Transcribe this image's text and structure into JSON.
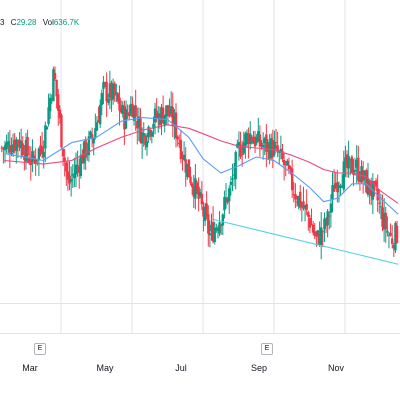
{
  "legend": {
    "prefix": "3",
    "close_label": "C",
    "close_value": "29.28",
    "volume_label": "Vol",
    "volume_value": "636.7K"
  },
  "events": [
    {
      "label": "E",
      "date": "Feb"
    },
    {
      "label": "E",
      "date": "Aug"
    }
  ],
  "colors": {
    "up": "#089981",
    "down": "#f23645",
    "ma_fast": "#5b9cf6",
    "ma_slow": "#e84a7f",
    "trendline": "#4dd0e1",
    "grid": "#e0e3eb"
  },
  "chart_data": {
    "type": "candlestick",
    "x_ticks": [
      {
        "label": "Mar",
        "m": 1
      },
      {
        "label": "May",
        "m": 3
      },
      {
        "label": "Jul",
        "m": 5
      },
      {
        "label": "Sep",
        "m": 7
      },
      {
        "label": "Nov",
        "m": 9
      }
    ],
    "close_path": [
      {
        "m": -0.6,
        "c": 34.0
      },
      {
        "m": -0.2,
        "c": 34.5
      },
      {
        "m": 0.2,
        "c": 33.2
      },
      {
        "m": 0.5,
        "c": 34.3
      },
      {
        "m": 0.8,
        "c": 38.2
      },
      {
        "m": 1.0,
        "c": 34.8
      },
      {
        "m": 1.2,
        "c": 31.9
      },
      {
        "m": 1.5,
        "c": 33.2
      },
      {
        "m": 1.9,
        "c": 34.6
      },
      {
        "m": 2.2,
        "c": 37.2
      },
      {
        "m": 2.5,
        "c": 36.9
      },
      {
        "m": 2.8,
        "c": 35.6
      },
      {
        "m": 3.0,
        "c": 36.5
      },
      {
        "m": 3.3,
        "c": 34.6
      },
      {
        "m": 3.6,
        "c": 35.6
      },
      {
        "m": 4.0,
        "c": 36.1
      },
      {
        "m": 4.2,
        "c": 35.3
      },
      {
        "m": 4.5,
        "c": 33.2
      },
      {
        "m": 4.8,
        "c": 31.6
      },
      {
        "m": 5.0,
        "c": 30.4
      },
      {
        "m": 5.2,
        "c": 29.1
      },
      {
        "m": 5.5,
        "c": 30.2
      },
      {
        "m": 5.8,
        "c": 31.9
      },
      {
        "m": 6.0,
        "c": 33.9
      },
      {
        "m": 6.3,
        "c": 34.8
      },
      {
        "m": 6.6,
        "c": 34.2
      },
      {
        "m": 7.0,
        "c": 34.0
      },
      {
        "m": 7.3,
        "c": 33.0
      },
      {
        "m": 7.6,
        "c": 31.5
      },
      {
        "m": 8.0,
        "c": 30.0
      },
      {
        "m": 8.2,
        "c": 28.8
      },
      {
        "m": 8.5,
        "c": 29.8
      },
      {
        "m": 8.7,
        "c": 32.0
      },
      {
        "m": 9.0,
        "c": 32.8
      },
      {
        "m": 9.3,
        "c": 33.0
      },
      {
        "m": 9.6,
        "c": 32.0
      },
      {
        "m": 9.9,
        "c": 31.2
      },
      {
        "m": 10.1,
        "c": 29.8
      },
      {
        "m": 10.3,
        "c": 28.9
      },
      {
        "m": 10.5,
        "c": 29.3
      }
    ],
    "ma_fast": [
      {
        "m": -0.6,
        "v": 33.7
      },
      {
        "m": 0.5,
        "v": 33.3
      },
      {
        "m": 1.3,
        "v": 34.3
      },
      {
        "m": 2.0,
        "v": 34.6
      },
      {
        "m": 2.7,
        "v": 35.5
      },
      {
        "m": 3.3,
        "v": 35.7
      },
      {
        "m": 4.0,
        "v": 35.6
      },
      {
        "m": 4.6,
        "v": 34.6
      },
      {
        "m": 5.0,
        "v": 33.4
      },
      {
        "m": 5.5,
        "v": 32.6
      },
      {
        "m": 6.0,
        "v": 33.0
      },
      {
        "m": 6.5,
        "v": 33.5
      },
      {
        "m": 7.0,
        "v": 33.3
      },
      {
        "m": 7.5,
        "v": 32.6
      },
      {
        "m": 8.0,
        "v": 31.8
      },
      {
        "m": 8.4,
        "v": 31.0
      },
      {
        "m": 8.8,
        "v": 31.2
      },
      {
        "m": 9.2,
        "v": 32.0
      },
      {
        "m": 9.6,
        "v": 32.0
      },
      {
        "m": 10.0,
        "v": 31.2
      },
      {
        "m": 10.5,
        "v": 30.3
      }
    ],
    "ma_slow": [
      {
        "m": -0.6,
        "v": 33.3
      },
      {
        "m": 0.5,
        "v": 33.1
      },
      {
        "m": 1.3,
        "v": 33.3
      },
      {
        "m": 2.0,
        "v": 34.0
      },
      {
        "m": 2.7,
        "v": 34.6
      },
      {
        "m": 3.3,
        "v": 35.0
      },
      {
        "m": 4.0,
        "v": 35.3
      },
      {
        "m": 4.6,
        "v": 35.1
      },
      {
        "m": 5.0,
        "v": 34.8
      },
      {
        "m": 5.5,
        "v": 34.4
      },
      {
        "m": 6.0,
        "v": 34.1
      },
      {
        "m": 6.5,
        "v": 34.0
      },
      {
        "m": 7.0,
        "v": 33.9
      },
      {
        "m": 7.5,
        "v": 33.6
      },
      {
        "m": 8.0,
        "v": 33.2
      },
      {
        "m": 8.4,
        "v": 32.8
      },
      {
        "m": 8.8,
        "v": 32.6
      },
      {
        "m": 9.2,
        "v": 32.6
      },
      {
        "m": 9.6,
        "v": 32.4
      },
      {
        "m": 10.0,
        "v": 31.6
      },
      {
        "m": 10.5,
        "v": 30.9
      }
    ],
    "trendline": [
      {
        "m": 5.3,
        "v": 30.0
      },
      {
        "m": 10.5,
        "v": 27.5
      }
    ],
    "y_range": [
      25.5,
      40.6
    ],
    "x_range": [
      -0.72,
      10.55
    ]
  }
}
